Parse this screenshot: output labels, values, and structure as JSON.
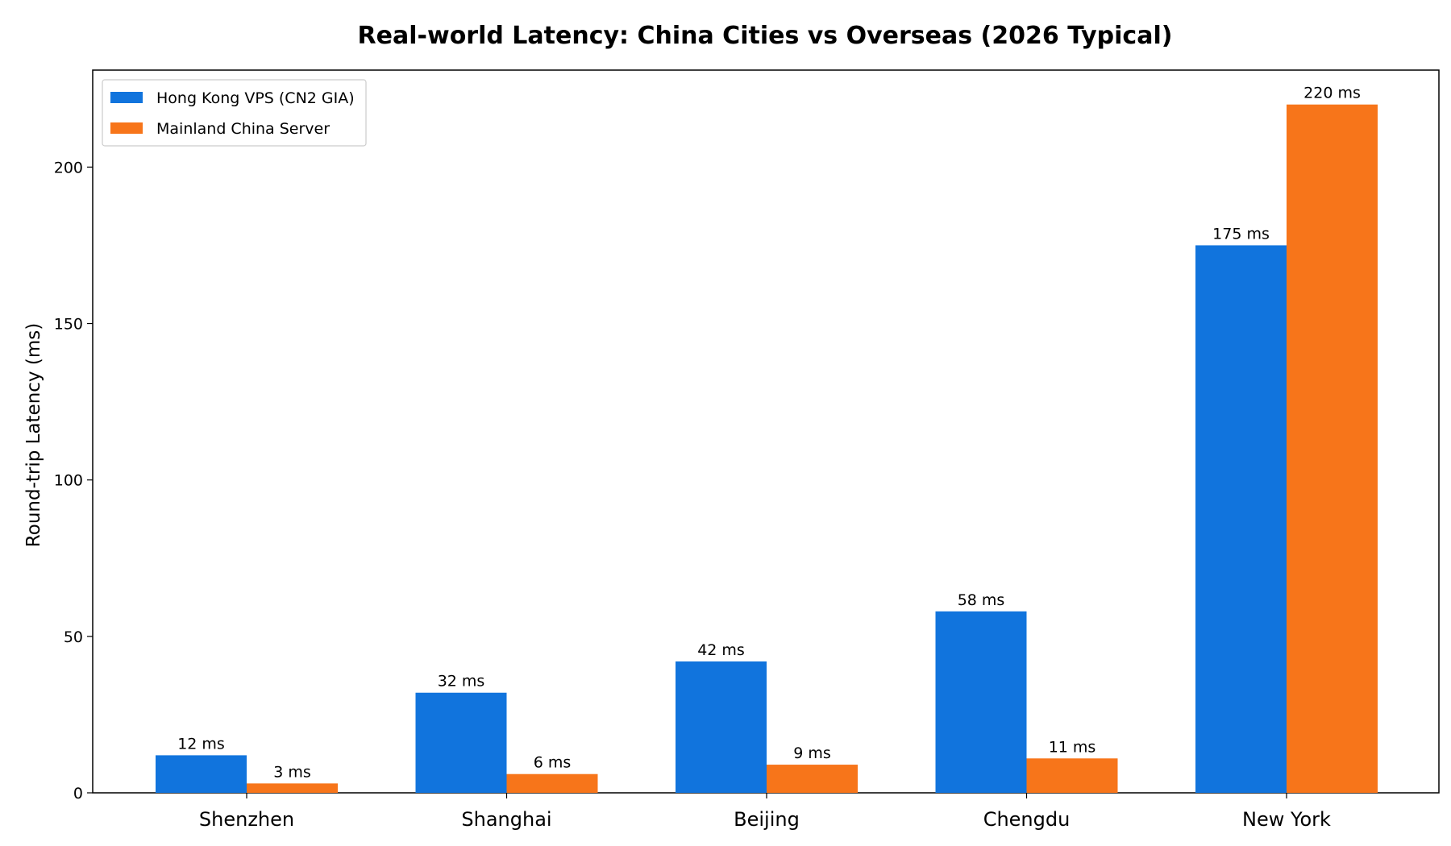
{
  "chart_data": {
    "type": "bar",
    "title": "Real-world Latency: China Cities vs Overseas (2026 Typical)",
    "xlabel": "",
    "ylabel": "Round-trip Latency (ms)",
    "categories": [
      "Shenzhen",
      "Shanghai",
      "Beijing",
      "Chengdu",
      "New York"
    ],
    "series": [
      {
        "name": "Hong Kong VPS (CN2 GIA)",
        "values": [
          12,
          32,
          42,
          58,
          175
        ],
        "labels": [
          "12 ms",
          "32 ms",
          "42 ms",
          "58 ms",
          "175 ms"
        ],
        "color": "#1174dd"
      },
      {
        "name": "Mainland China Server",
        "values": [
          3,
          6,
          9,
          11,
          220
        ],
        "labels": [
          "3 ms",
          "6 ms",
          "9 ms",
          "11 ms",
          "220 ms"
        ],
        "color": "#f7751a"
      }
    ],
    "ylim": [
      0,
      231
    ],
    "yticks": [
      0,
      50,
      100,
      150,
      200
    ],
    "ytick_labels": [
      "0",
      "50",
      "100",
      "150",
      "200"
    ],
    "grid": false,
    "legend_position": "top-left"
  }
}
